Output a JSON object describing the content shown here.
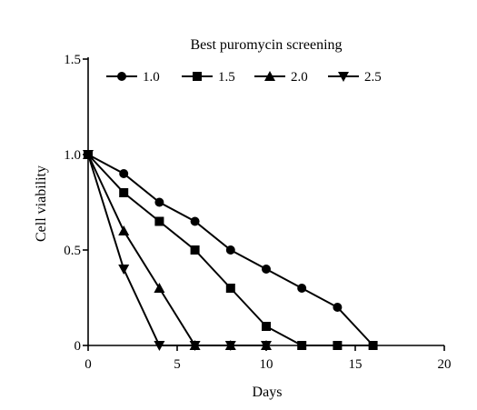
{
  "chart_data": {
    "type": "line",
    "title": "Best puromycin screening",
    "xlabel": "Days",
    "ylabel": "Cell viability",
    "xlim": [
      0,
      20
    ],
    "ylim": [
      0,
      1.5
    ],
    "x_ticks": [
      "0",
      "5",
      "10",
      "15",
      "20"
    ],
    "y_ticks": [
      "0",
      "0.5",
      "1.0",
      "1.5"
    ],
    "legend_position": "top",
    "grid": false,
    "series": [
      {
        "name": "1.0",
        "marker": "circle",
        "x": [
          0,
          2,
          4,
          6,
          8,
          10,
          12,
          14,
          16
        ],
        "y": [
          1.0,
          0.9,
          0.75,
          0.65,
          0.5,
          0.4,
          0.3,
          0.2,
          0
        ]
      },
      {
        "name": "1.5",
        "marker": "square",
        "x": [
          0,
          2,
          4,
          6,
          8,
          10,
          12,
          14,
          16
        ],
        "y": [
          1.0,
          0.8,
          0.65,
          0.5,
          0.3,
          0.1,
          0,
          0,
          0
        ]
      },
      {
        "name": "2.0",
        "marker": "triangle-up",
        "x": [
          0,
          2,
          4,
          6,
          8,
          10
        ],
        "y": [
          1.0,
          0.6,
          0.3,
          0,
          0,
          0
        ]
      },
      {
        "name": "2.5",
        "marker": "triangle-down",
        "x": [
          0,
          2,
          4,
          6,
          8,
          10
        ],
        "y": [
          1.0,
          0.4,
          0,
          0,
          0,
          0
        ]
      }
    ]
  }
}
